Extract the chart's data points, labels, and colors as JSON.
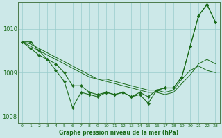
{
  "xlabel": "Graphe pression niveau de la mer (hPa)",
  "ylabel": "",
  "background_color": "#cce8e8",
  "grid_color": "#99cccc",
  "line_color": "#1a6b1a",
  "hours": [
    0,
    1,
    2,
    3,
    4,
    5,
    6,
    7,
    8,
    9,
    10,
    11,
    12,
    13,
    14,
    15,
    16,
    17,
    18,
    19,
    20,
    21,
    22,
    23
  ],
  "series": [
    [
      1009.7,
      1009.7,
      1009.5,
      1009.3,
      1009.2,
      1009.0,
      1008.7,
      1008.7,
      1008.55,
      1008.5,
      1008.55,
      1008.5,
      1008.55,
      1008.45,
      1008.55,
      1008.45,
      1008.6,
      1008.65,
      1008.65,
      1008.9,
      1009.6,
      1010.3,
      1010.55,
      1010.15
    ],
    [
      1009.7,
      1009.65,
      1009.55,
      1009.45,
      1009.35,
      1009.25,
      1009.15,
      1009.05,
      1008.95,
      1008.85,
      1008.85,
      1008.8,
      1008.75,
      1008.7,
      1008.65,
      1008.6,
      1008.6,
      1008.55,
      1008.6,
      1008.85,
      1009.05,
      1009.15,
      1009.05,
      1009.0
    ],
    [
      1009.7,
      1009.6,
      1009.5,
      1009.4,
      1009.3,
      1009.2,
      1009.1,
      1009.0,
      1008.9,
      1008.85,
      1008.8,
      1008.75,
      1008.7,
      1008.65,
      1008.6,
      1008.55,
      1008.55,
      1008.5,
      1008.55,
      1008.75,
      1008.95,
      1009.2,
      1009.3,
      1009.2
    ],
    [
      1009.7,
      1009.55,
      1009.4,
      1009.3,
      1009.05,
      1008.8,
      1008.2,
      1008.55,
      1008.5,
      1008.45,
      1008.55,
      1008.5,
      1008.55,
      1008.45,
      1008.5,
      1008.3,
      1008.6,
      1008.65,
      1008.65,
      1008.9,
      1009.6,
      1010.3,
      1010.55,
      1010.15
    ]
  ],
  "ylim": [
    1007.85,
    1010.6
  ],
  "yticks": [
    1008,
    1009,
    1010
  ],
  "xticks": [
    0,
    1,
    2,
    3,
    4,
    5,
    6,
    7,
    8,
    9,
    10,
    11,
    12,
    13,
    14,
    15,
    16,
    17,
    18,
    19,
    20,
    21,
    22,
    23
  ]
}
